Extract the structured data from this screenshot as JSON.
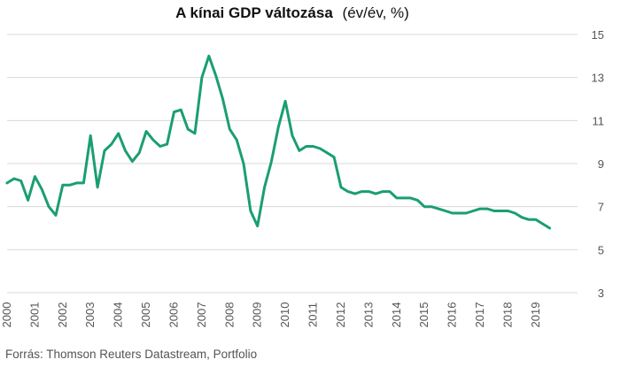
{
  "chart_data": {
    "type": "line",
    "title": "A kínai GDP változása",
    "unit_label": "(év/év, %)",
    "source": "Forrás: Thomson Reuters Datastream, Portfolio",
    "x_start": 2000.0,
    "x_step": 0.25,
    "x_ticks": [
      "2000",
      "2001",
      "2002",
      "2003",
      "2004",
      "2005",
      "2006",
      "2007",
      "2008",
      "2009",
      "2010",
      "2011",
      "2012",
      "2013",
      "2014",
      "2015",
      "2016",
      "2017",
      "2018",
      "2019"
    ],
    "y_ticks": [
      3,
      5,
      7,
      9,
      11,
      13,
      15
    ],
    "ylim": [
      3,
      15
    ],
    "xlim": [
      2000,
      2020.5
    ],
    "color": "#1a9e72",
    "grid": true,
    "series": [
      {
        "values": [
          8.1,
          8.3,
          8.2,
          7.3,
          8.4,
          7.8,
          7.0,
          6.6,
          8.0,
          8.0,
          8.1,
          8.1,
          10.3,
          7.9,
          9.6,
          9.9,
          10.4,
          9.6,
          9.1,
          9.5,
          10.5,
          10.1,
          9.8,
          9.9,
          11.4,
          11.5,
          10.6,
          10.4,
          13.0,
          14.0,
          13.1,
          12.0,
          10.6,
          10.1,
          9.0,
          6.8,
          6.1,
          7.9,
          9.1,
          10.7,
          11.9,
          10.3,
          9.6,
          9.8,
          9.8,
          9.7,
          9.5,
          9.3,
          7.9,
          7.7,
          7.6,
          7.7,
          7.7,
          7.6,
          7.7,
          7.7,
          7.4,
          7.4,
          7.4,
          7.3,
          7.0,
          7.0,
          6.9,
          6.8,
          6.7,
          6.7,
          6.7,
          6.8,
          6.9,
          6.9,
          6.8,
          6.8,
          6.8,
          6.7,
          6.5,
          6.4,
          6.4,
          6.2,
          6.0
        ]
      }
    ]
  }
}
